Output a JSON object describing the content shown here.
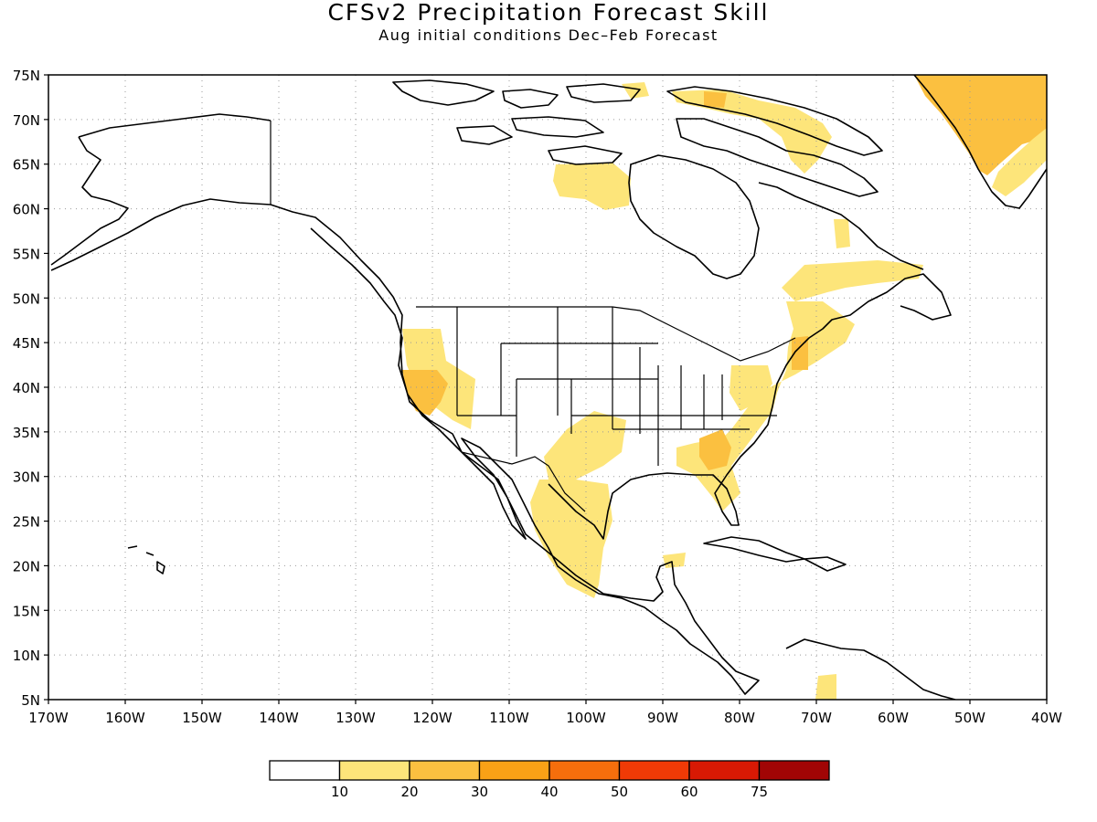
{
  "title": "CFSv2 Precipitation Forecast Skill",
  "subtitle": "Aug initial conditions   Dec–Feb Forecast",
  "map": {
    "lon_range": [
      -170,
      -40
    ],
    "lat_range": [
      5,
      75
    ],
    "lon_labels": [
      "170W",
      "160W",
      "150W",
      "140W",
      "130W",
      "120W",
      "110W",
      "100W",
      "90W",
      "80W",
      "70W",
      "60W",
      "50W",
      "40W"
    ],
    "lat_labels": [
      "75N",
      "70N",
      "65N",
      "60N",
      "55N",
      "50N",
      "45N",
      "40N",
      "35N",
      "30N",
      "25N",
      "20N",
      "15N",
      "10N",
      "5N"
    ],
    "grid": "dotted"
  },
  "legend": {
    "colors": [
      "#ffffff",
      "#fde57a",
      "#fbc040",
      "#f9a116",
      "#f56e0c",
      "#f03a06",
      "#d81904",
      "#a10505"
    ],
    "labels": [
      "10",
      "20",
      "30",
      "40",
      "50",
      "60",
      "75"
    ]
  }
}
